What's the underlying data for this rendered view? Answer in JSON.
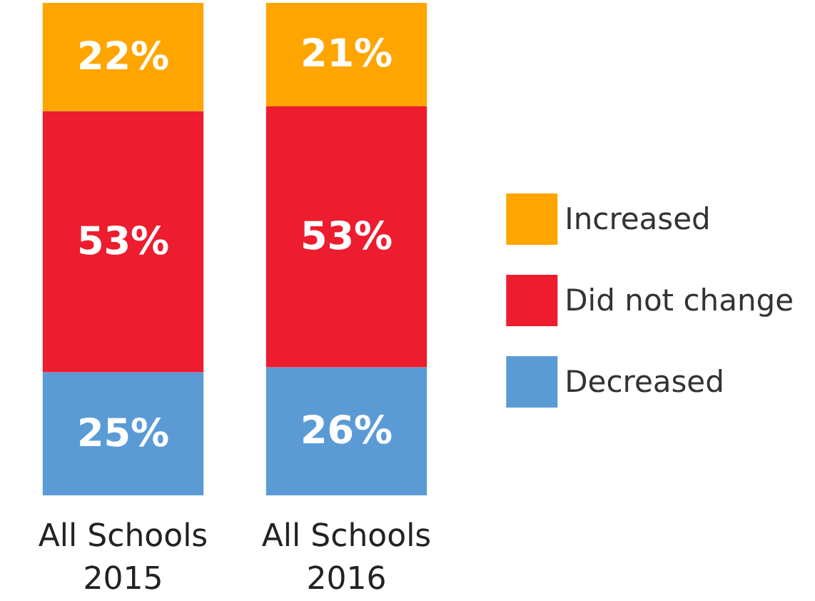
{
  "chart_data": {
    "type": "bar",
    "stacked": true,
    "categories": [
      "All Schools\n2015",
      "All Schools\n2016"
    ],
    "series": [
      {
        "name": "Decreased",
        "color": "#5b9bd5",
        "values": [
          25,
          26
        ],
        "value_labels": [
          "25%",
          "26%"
        ]
      },
      {
        "name": "Did not change",
        "color": "#ed1c2e",
        "values": [
          53,
          53
        ],
        "value_labels": [
          "53%",
          "53%"
        ]
      },
      {
        "name": "Increased",
        "color": "#ffa500",
        "values": [
          22,
          21
        ],
        "value_labels": [
          "22%",
          "21%"
        ]
      }
    ],
    "legend": "right"
  }
}
